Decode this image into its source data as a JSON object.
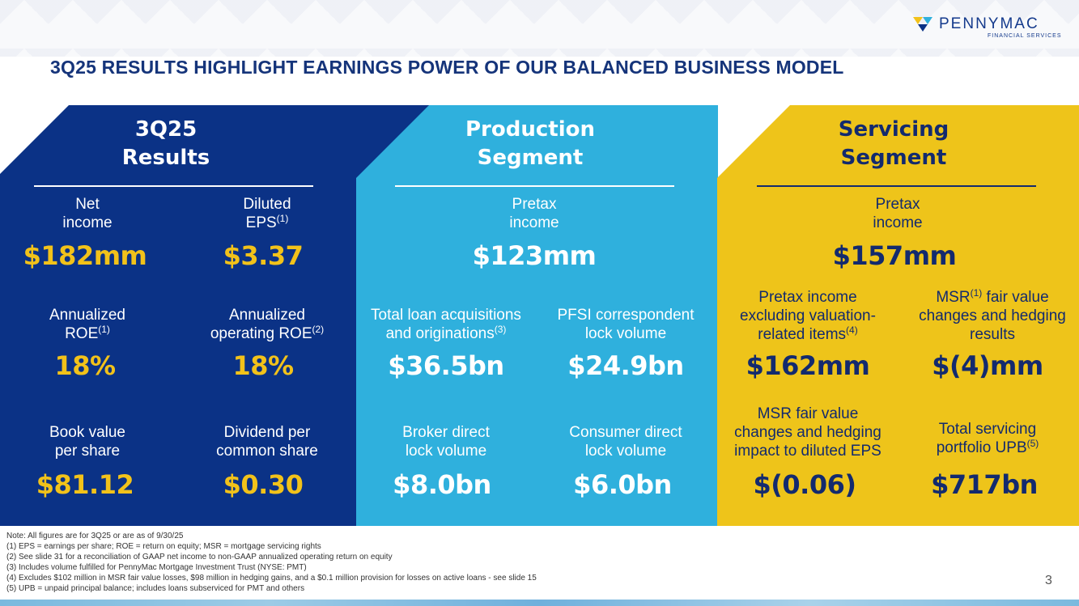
{
  "brand": {
    "name": "PENNYMAC",
    "sub": "FINANCIAL SERVICES",
    "mark": "pennymac-logo-icon"
  },
  "title": "3Q25 RESULTS HIGHLIGHT EARNINGS POWER OF OUR BALANCED BUSINESS MODEL",
  "colors": {
    "navy": "#0b3286",
    "blue": "#2fb0dd",
    "yellow": "#eec41a",
    "gold_value": "#f2c21a",
    "title": "#15347a"
  },
  "results": {
    "heading_1": "3Q25",
    "heading_2": "Results",
    "net_income": {
      "label_1": "Net",
      "label_2": "income",
      "value": "$182mm"
    },
    "diluted_eps": {
      "label_1": "Diluted",
      "label_2": "EPS",
      "sup": "(1)",
      "value": "$3.37"
    },
    "roe": {
      "label_1": "Annualized",
      "label_2": "ROE",
      "sup": "(1)",
      "value": "18%"
    },
    "op_roe": {
      "label_1": "Annualized",
      "label_2": "operating ROE",
      "sup": "(2)",
      "value": "18%"
    },
    "bvps": {
      "label_1": "Book value",
      "label_2": "per share",
      "value": "$81.12"
    },
    "dividend": {
      "label_1": "Dividend per",
      "label_2": "common share",
      "value": "$0.30"
    }
  },
  "production": {
    "heading_1": "Production",
    "heading_2": "Segment",
    "pretax": {
      "label_1": "Pretax",
      "label_2": "income",
      "value": "$123mm"
    },
    "acquisitions": {
      "label_1": "Total loan acquisitions",
      "label_2": "and originations",
      "sup": "(3)",
      "value": "$36.5bn"
    },
    "correspondent": {
      "label_1": "PFSI correspondent",
      "label_2": "lock volume",
      "value": "$24.9bn"
    },
    "broker": {
      "label_1": "Broker direct",
      "label_2": "lock volume",
      "value": "$8.0bn"
    },
    "consumer": {
      "label_1": "Consumer direct",
      "label_2": "lock volume",
      "value": "$6.0bn"
    }
  },
  "servicing": {
    "heading_1": "Servicing",
    "heading_2": "Segment",
    "pretax": {
      "label_1": "Pretax",
      "label_2": "income",
      "value": "$157mm"
    },
    "excl_valuation": {
      "label_1": "Pretax income",
      "label_2": "excluding valuation-",
      "label_3": "related items",
      "sup": "(4)",
      "value": "$162mm"
    },
    "msr_fv": {
      "label_1a": "MSR",
      "sup": "(1)",
      "label_1b": " fair value",
      "label_2": "changes and hedging",
      "label_3": "results",
      "value": "$(4)mm"
    },
    "msr_eps": {
      "label_1": "MSR fair value",
      "label_2": "changes and hedging",
      "label_3": "impact to diluted EPS",
      "value": "$(0.06)"
    },
    "upb": {
      "label_1": "Total servicing",
      "label_2": "portfolio UPB",
      "sup": "(5)",
      "value": "$717bn"
    }
  },
  "notes": [
    "Note: All figures are for 3Q25 or are as of 9/30/25",
    "(1) EPS = earnings per share; ROE = return on equity; MSR = mortgage servicing rights",
    "(2) See slide 31 for a reconciliation of GAAP net income to non-GAAP annualized operating return on equity",
    "(3) Includes volume fulfilled for PennyMac Mortgage Investment Trust (NYSE: PMT)",
    "(4) Excludes $102 million in MSR fair value losses, $98 million in hedging gains, and a $0.1 million provision for losses on active loans - see slide 15",
    "(5) UPB = unpaid principal balance; includes loans subserviced for PMT and others"
  ],
  "page_number": "3"
}
